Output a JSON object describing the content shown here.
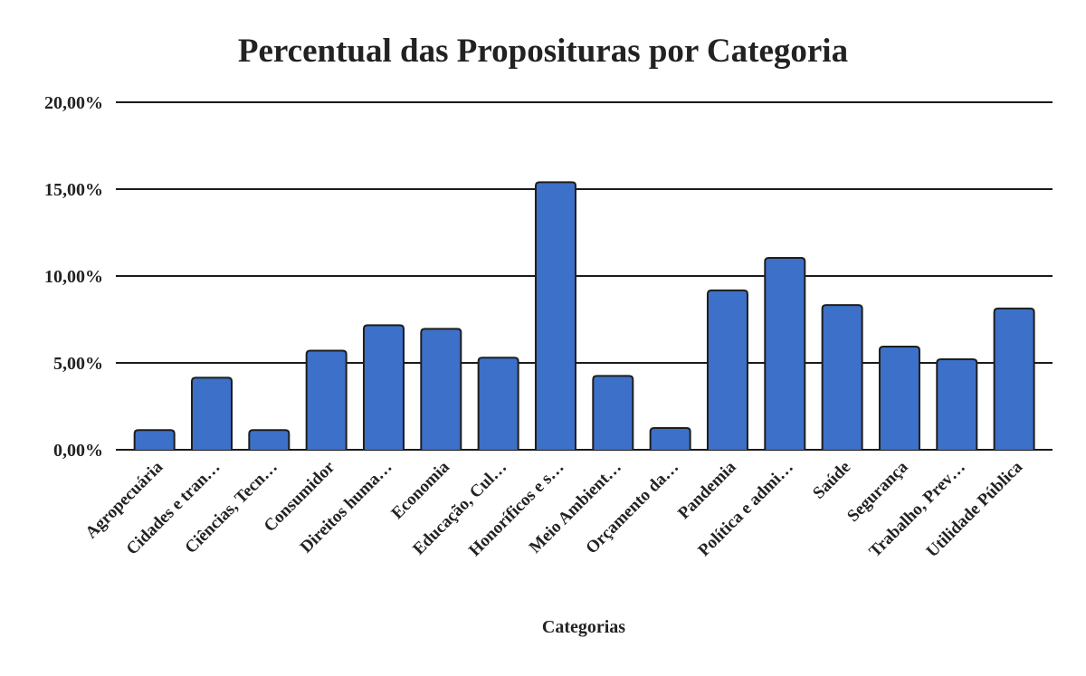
{
  "chart_data": {
    "type": "bar",
    "title": "Percentual das Proposituras por Categoria",
    "xlabel": "Categorias",
    "ylabel": "",
    "ylim": [
      0,
      20
    ],
    "yticks": [
      "0,00%",
      "5,00%",
      "10,00%",
      "15,00%",
      "20,00%"
    ],
    "grid": true,
    "bar_color": "#3d70c9",
    "categories": [
      "Agropecuária",
      "Cidades e tran…",
      "Ciências, Tecn…",
      "Consumidor",
      "Direitos huma…",
      "Economia",
      "Educação, Cul…",
      "Honoríficos e s…",
      "Meio Ambient…",
      "Orçamento da…",
      "Pandemia",
      "Política e admi…",
      "Saúde",
      "Segurança",
      "Trabalho, Prev…",
      "Utilidade Pública"
    ],
    "values": [
      1.13,
      4.15,
      1.13,
      5.7,
      7.17,
      6.96,
      5.3,
      15.4,
      4.25,
      1.25,
      9.17,
      11.04,
      8.33,
      5.94,
      5.21,
      8.13
    ]
  }
}
